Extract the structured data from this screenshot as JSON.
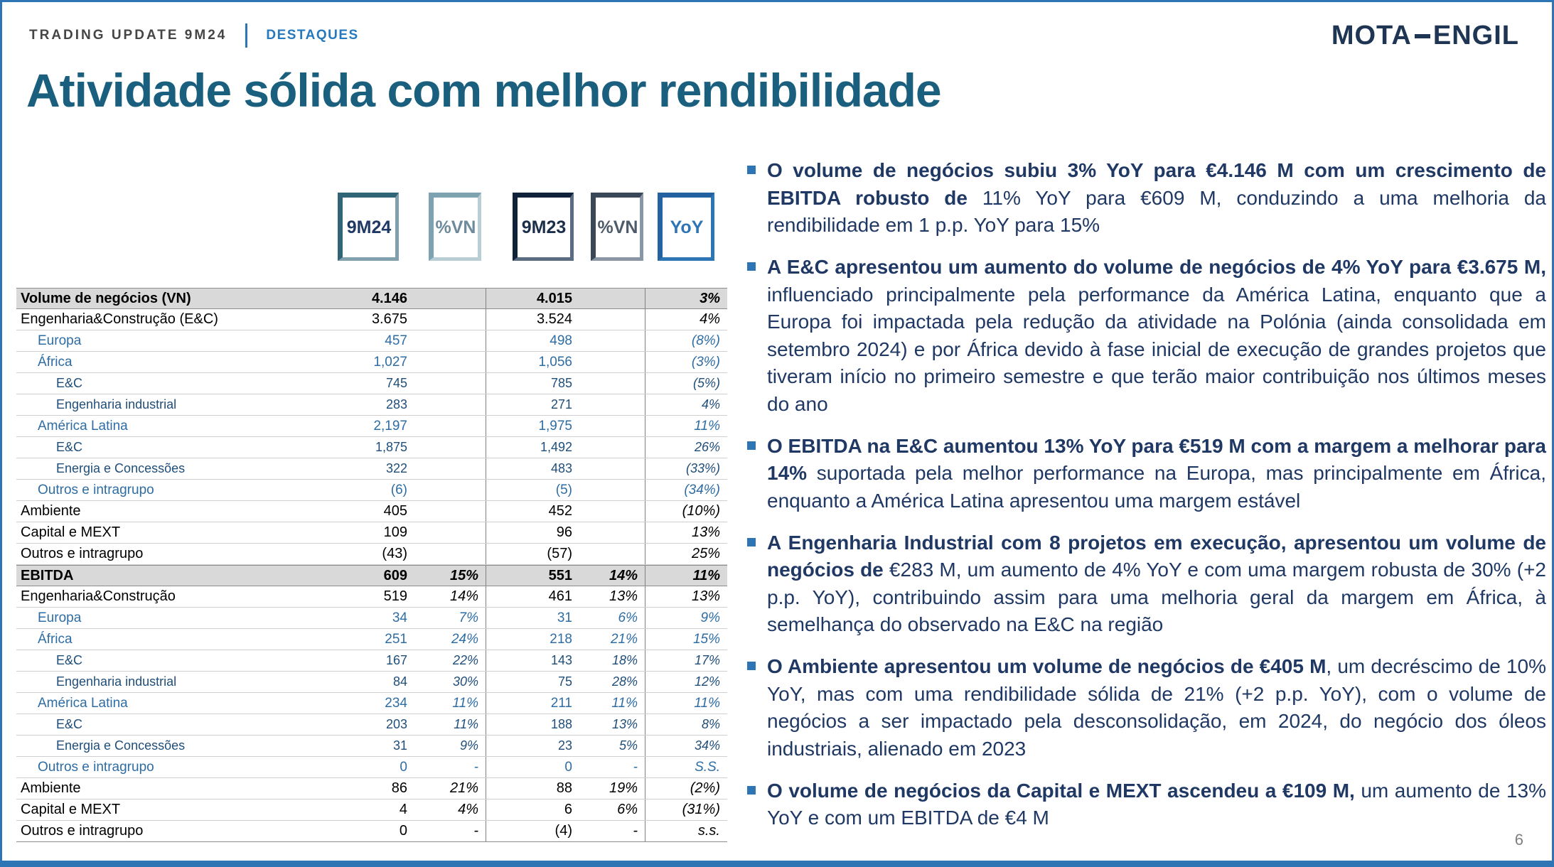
{
  "header": {
    "kicker": "TRADING UPDATE 9M24",
    "section": "DESTAQUES",
    "logo_left": "MOTA",
    "logo_right": "ENGIL"
  },
  "title": "Atividade sólida com melhor rendibilidade",
  "page_number": "6",
  "colors": {
    "accent_blue": "#2e75b6",
    "navy_text": "#1f3864",
    "title_teal": "#1a5f7e",
    "table_header_bg": "#d9d9d9",
    "sub_row_blue": "#2e6da4"
  },
  "table": {
    "boxes": [
      {
        "label": "9M24"
      },
      {
        "label": "%VN"
      },
      {
        "label": "9M23"
      },
      {
        "label": "%VN"
      },
      {
        "label": "YoY"
      }
    ],
    "rows": [
      {
        "label": "Volume de negócios (VN)",
        "v24": "4.146",
        "p24": "",
        "v23": "4.015",
        "p23": "",
        "yoy": "3%",
        "type": "header"
      },
      {
        "label": "Engenharia&Construção (E&C)",
        "v24": "3.675",
        "p24": "",
        "v23": "3.524",
        "p23": "",
        "yoy": "4%",
        "type": "main"
      },
      {
        "label": "Europa",
        "v24": "457",
        "p24": "",
        "v23": "498",
        "p23": "",
        "yoy": "(8%)",
        "type": "sub1"
      },
      {
        "label": "África",
        "v24": "1,027",
        "p24": "",
        "v23": "1,056",
        "p23": "",
        "yoy": "(3%)",
        "type": "sub1"
      },
      {
        "label": "E&C",
        "v24": "745",
        "p24": "",
        "v23": "785",
        "p23": "",
        "yoy": "(5%)",
        "type": "sub2"
      },
      {
        "label": "Engenharia industrial",
        "v24": "283",
        "p24": "",
        "v23": "271",
        "p23": "",
        "yoy": "4%",
        "type": "sub2"
      },
      {
        "label": "América Latina",
        "v24": "2,197",
        "p24": "",
        "v23": "1,975",
        "p23": "",
        "yoy": "11%",
        "type": "sub1"
      },
      {
        "label": "E&C",
        "v24": "1,875",
        "p24": "",
        "v23": "1,492",
        "p23": "",
        "yoy": "26%",
        "type": "sub2"
      },
      {
        "label": "Energia e Concessões",
        "v24": "322",
        "p24": "",
        "v23": "483",
        "p23": "",
        "yoy": "(33%)",
        "type": "sub2"
      },
      {
        "label": "Outros e intragrupo",
        "v24": "(6)",
        "p24": "",
        "v23": "(5)",
        "p23": "",
        "yoy": "(34%)",
        "type": "sub1"
      },
      {
        "label": "Ambiente",
        "v24": "405",
        "p24": "",
        "v23": "452",
        "p23": "",
        "yoy": "(10%)",
        "type": "main"
      },
      {
        "label": "Capital e MEXT",
        "v24": "109",
        "p24": "",
        "v23": "96",
        "p23": "",
        "yoy": "13%",
        "type": "main"
      },
      {
        "label": "Outros e intragrupo",
        "v24": "(43)",
        "p24": "",
        "v23": "(57)",
        "p23": "",
        "yoy": "25%",
        "type": "main"
      },
      {
        "label": "EBITDA",
        "v24": "609",
        "p24": "15%",
        "v23": "551",
        "p23": "14%",
        "yoy": "11%",
        "type": "header"
      },
      {
        "label": "Engenharia&Construção",
        "v24": "519",
        "p24": "14%",
        "v23": "461",
        "p23": "13%",
        "yoy": "13%",
        "type": "main"
      },
      {
        "label": "Europa",
        "v24": "34",
        "p24": "7%",
        "v23": "31",
        "p23": "6%",
        "yoy": "9%",
        "type": "sub1"
      },
      {
        "label": "África",
        "v24": "251",
        "p24": "24%",
        "v23": "218",
        "p23": "21%",
        "yoy": "15%",
        "type": "sub1"
      },
      {
        "label": "E&C",
        "v24": "167",
        "p24": "22%",
        "v23": "143",
        "p23": "18%",
        "yoy": "17%",
        "type": "sub2"
      },
      {
        "label": "Engenharia industrial",
        "v24": "84",
        "p24": "30%",
        "v23": "75",
        "p23": "28%",
        "yoy": "12%",
        "type": "sub2"
      },
      {
        "label": "América Latina",
        "v24": "234",
        "p24": "11%",
        "v23": "211",
        "p23": "11%",
        "yoy": "11%",
        "type": "sub1"
      },
      {
        "label": "E&C",
        "v24": "203",
        "p24": "11%",
        "v23": "188",
        "p23": "13%",
        "yoy": "8%",
        "type": "sub2"
      },
      {
        "label": "Energia e Concessões",
        "v24": "31",
        "p24": "9%",
        "v23": "23",
        "p23": "5%",
        "yoy": "34%",
        "type": "sub2"
      },
      {
        "label": "Outros e intragrupo",
        "v24": "0",
        "p24": "-",
        "v23": "0",
        "p23": "-",
        "yoy": "S.S.",
        "type": "sub1"
      },
      {
        "label": "Ambiente",
        "v24": "86",
        "p24": "21%",
        "v23": "88",
        "p23": "19%",
        "yoy": "(2%)",
        "type": "main"
      },
      {
        "label": "Capital e MEXT",
        "v24": "4",
        "p24": "4%",
        "v23": "6",
        "p23": "6%",
        "yoy": "(31%)",
        "type": "main"
      },
      {
        "label": "Outros e intragrupo",
        "v24": "0",
        "p24": "-",
        "v23": "(4)",
        "p23": "-",
        "yoy": "s.s.",
        "type": "main"
      }
    ]
  },
  "bullets": [
    {
      "bold": "O volume de negócios subiu 3% YoY para €4.146 M com um crescimento de EBITDA robusto de",
      "rest": " 11% YoY para €609 M, conduzindo a uma melhoria da rendibilidade em 1 p.p. YoY para 15%"
    },
    {
      "bold": "A E&C apresentou um aumento do volume de negócios de 4% YoY para €3.675 M,",
      "rest": " influenciado principalmente pela performance da América Latina, enquanto que a Europa foi impactada pela redução da atividade na Polónia (ainda consolidada em setembro 2024) e por África devido à fase inicial de execução de grandes projetos que tiveram início no primeiro semestre e que terão maior contribuição nos últimos meses do ano"
    },
    {
      "bold": "O EBITDA na E&C aumentou 13% YoY para €519 M com a margem a melhorar para 14%",
      "rest": " suportada pela melhor performance na Europa, mas principalmente em África, enquanto a América Latina apresentou uma margem estável"
    },
    {
      "bold": "A Engenharia Industrial com 8 projetos em execução, apresentou um volume de negócios de",
      "rest": " €283 M, um aumento de 4% YoY e com uma margem robusta de 30% (+2 p.p. YoY), contribuindo assim para uma melhoria geral da margem em África, à semelhança do observado na E&C na região"
    },
    {
      "bold": "O Ambiente apresentou um volume de negócios de €405 M",
      "rest": ", um decréscimo de 10% YoY, mas com uma rendibilidade sólida de 21% (+2 p.p. YoY), com o volume de negócios a ser impactado pela desconsolidação, em 2024, do negócio dos óleos industriais, alienado em 2023"
    },
    {
      "bold": "O volume de negócios da Capital e MEXT ascendeu a €109 M,",
      "rest": " um aumento de 13% YoY e com um EBITDA de €4 M"
    }
  ]
}
